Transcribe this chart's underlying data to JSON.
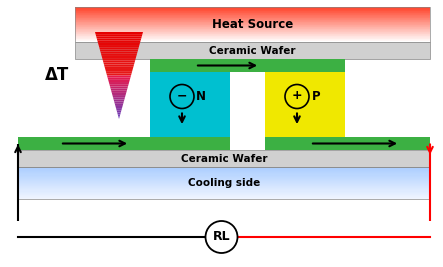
{
  "bg_color": "#ffffff",
  "green_color": "#3cb043",
  "n_block_color": "#00c0d0",
  "p_block_color": "#f0e800",
  "ceramic_color": "#d0d0d0",
  "cooling_color_top": "#e8f4ff",
  "cooling_color_bot": "#a8d0f0",
  "heat_label": "Heat Source",
  "ceramic_label": "Ceramic Wafer",
  "cooling_label": "Cooling side",
  "rl_label": "RL",
  "delta_t_label": "ΔT",
  "n_label": "N",
  "p_label": "P",
  "fig_w": 4.43,
  "fig_h": 2.67,
  "dpi": 100
}
